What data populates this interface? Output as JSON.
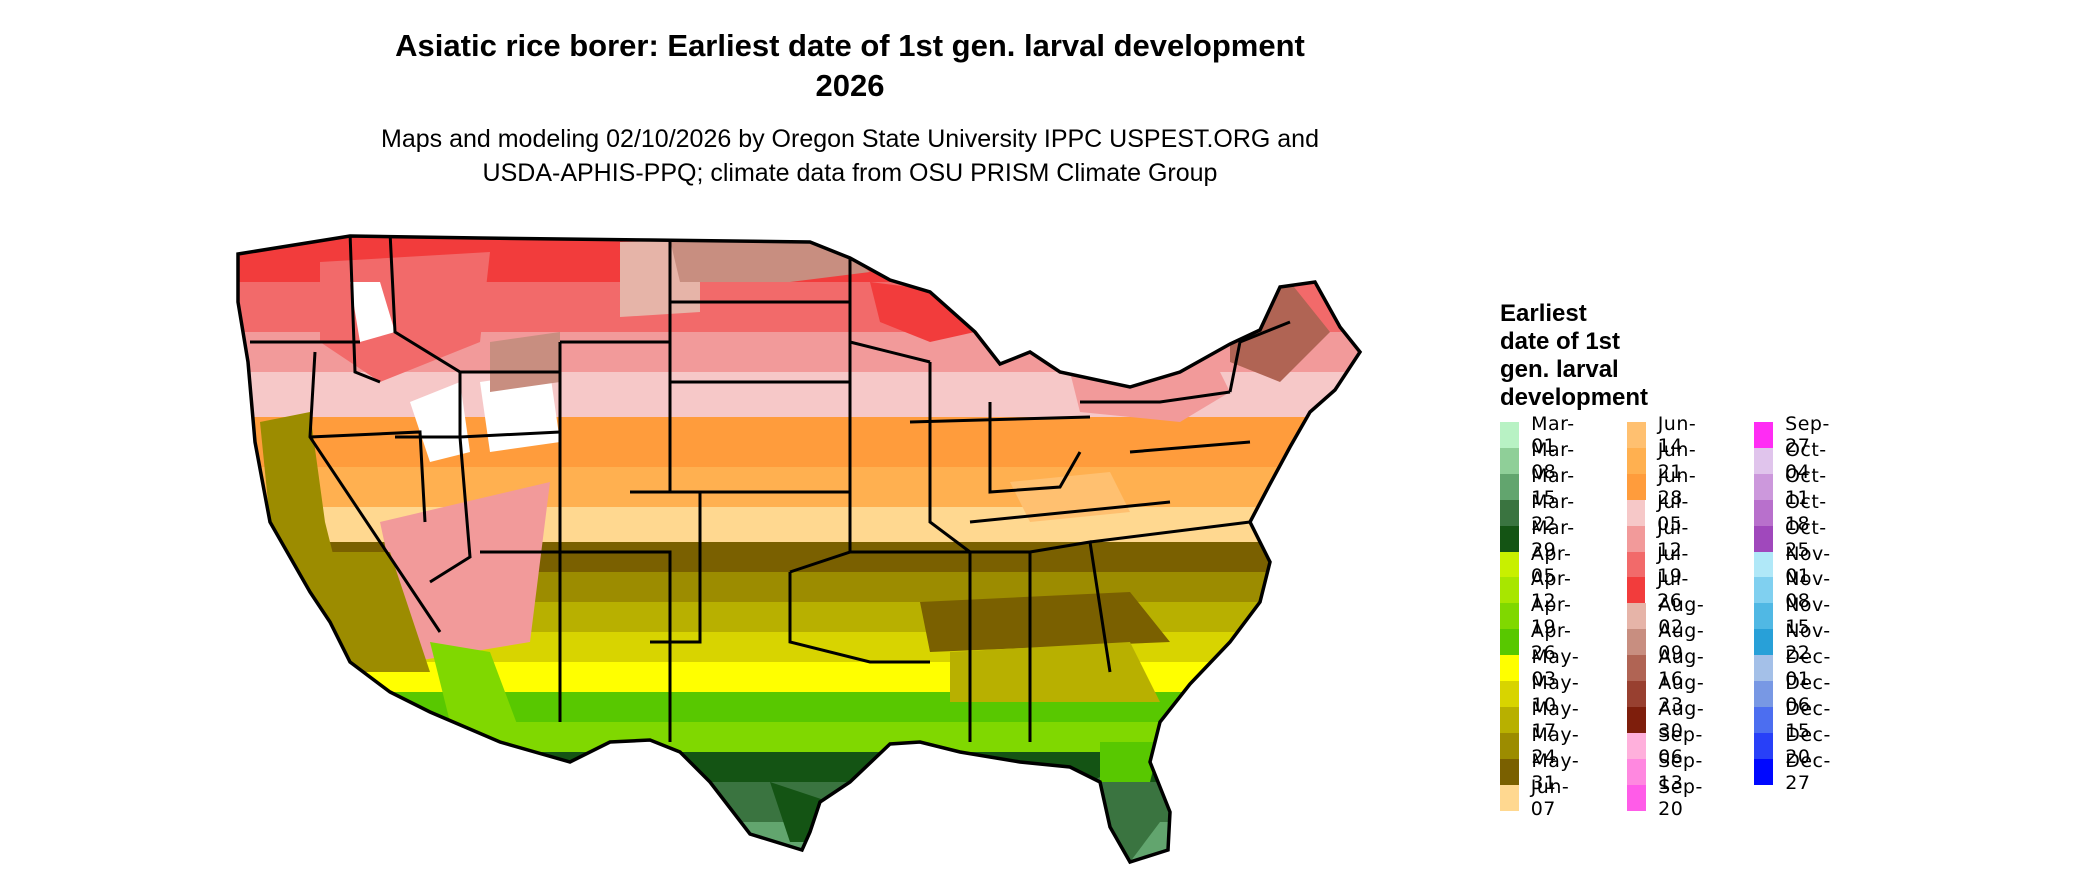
{
  "title_line1": "Asiatic rice borer: Earliest date of 1st gen. larval development",
  "title_line2": "2026",
  "subtitle_line1": "Maps and modeling 02/10/2026 by Oregon State University IPPC USPEST.ORG and",
  "subtitle_line2": "USDA-APHIS-PPQ; climate data from OSU PRISM Climate Group",
  "legend": {
    "title_lines": [
      "Earliest",
      "date of 1st",
      "gen. larval",
      "development"
    ],
    "items": [
      {
        "label": "Mar-01",
        "color": "#b8f2c4"
      },
      {
        "label": "Mar-08",
        "color": "#8fcf98"
      },
      {
        "label": "Mar-15",
        "color": "#62a56e"
      },
      {
        "label": "Mar-22",
        "color": "#3a7440"
      },
      {
        "label": "Mar-29",
        "color": "#145414"
      },
      {
        "label": "Apr-05",
        "color": "#c8f000"
      },
      {
        "label": "Apr-12",
        "color": "#a8e600"
      },
      {
        "label": "Apr-19",
        "color": "#80d800"
      },
      {
        "label": "Apr-26",
        "color": "#58c800"
      },
      {
        "label": "May-03",
        "color": "#ffff00"
      },
      {
        "label": "May-10",
        "color": "#d8d400"
      },
      {
        "label": "May-17",
        "color": "#b8b000"
      },
      {
        "label": "May-24",
        "color": "#9c8c00"
      },
      {
        "label": "May-31",
        "color": "#7a6000"
      },
      {
        "label": "Jun-07",
        "color": "#ffd890"
      },
      {
        "label": "Jun-14",
        "color": "#ffc070"
      },
      {
        "label": "Jun-21",
        "color": "#ffb050"
      },
      {
        "label": "Jun-28",
        "color": "#ff9c3c"
      },
      {
        "label": "Jul-05",
        "color": "#f6c8c8"
      },
      {
        "label": "Jul-12",
        "color": "#f29a9a"
      },
      {
        "label": "Jul-19",
        "color": "#f26a6a"
      },
      {
        "label": "Jul-26",
        "color": "#f23c3c"
      },
      {
        "label": "Aug-02",
        "color": "#e6b4a8"
      },
      {
        "label": "Aug-09",
        "color": "#c88e80"
      },
      {
        "label": "Aug-16",
        "color": "#b06454"
      },
      {
        "label": "Aug-23",
        "color": "#984030"
      },
      {
        "label": "Aug-30",
        "color": "#7e1e0c"
      },
      {
        "label": "Sep-06",
        "color": "#ffb0dc"
      },
      {
        "label": "Sep-13",
        "color": "#ff88e0"
      },
      {
        "label": "Sep-20",
        "color": "#ff5ce8"
      },
      {
        "label": "Sep-27",
        "color": "#ff2cf4"
      },
      {
        "label": "Oct-04",
        "color": "#e0c4ec"
      },
      {
        "label": "Oct-11",
        "color": "#cc98dc"
      },
      {
        "label": "Oct-18",
        "color": "#b870cc"
      },
      {
        "label": "Oct-25",
        "color": "#a048bc"
      },
      {
        "label": "Nov-01",
        "color": "#b0e8f8"
      },
      {
        "label": "Nov-08",
        "color": "#80d0f0"
      },
      {
        "label": "Nov-15",
        "color": "#50b8e4"
      },
      {
        "label": "Nov-22",
        "color": "#28a0d8"
      },
      {
        "label": "Dec-01",
        "color": "#a4c0e8"
      },
      {
        "label": "Dec-06",
        "color": "#7898e4"
      },
      {
        "label": "Dec-15",
        "color": "#4c6ef0"
      },
      {
        "label": "Dec-20",
        "color": "#2840f8"
      },
      {
        "label": "Dec-27",
        "color": "#0008ff"
      }
    ]
  }
}
